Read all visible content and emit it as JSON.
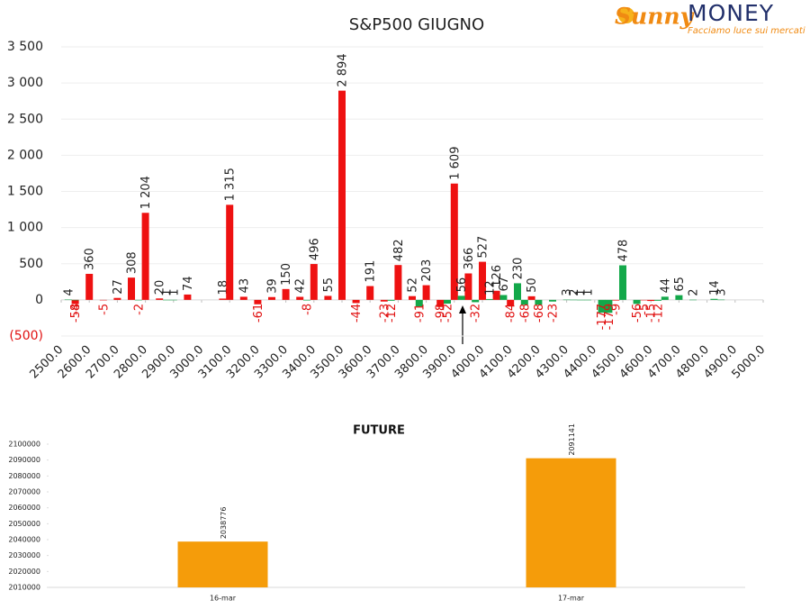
{
  "logo": {
    "brand": "Sunny",
    "name": "MONEY",
    "tagline": "Facciamo luce sui mercati"
  },
  "chart_data": [
    {
      "type": "bar",
      "title": "S&P500 GIUGNO",
      "xlim": [
        2500,
        5000
      ],
      "xticks": [
        {
          "value": 2500,
          "label": "2500.0"
        },
        {
          "value": 2600,
          "label": "2600.0"
        },
        {
          "value": 2700,
          "label": "2700.0"
        },
        {
          "value": 2800,
          "label": "2800.0"
        },
        {
          "value": 2900,
          "label": "2900.0"
        },
        {
          "value": 3000,
          "label": "3000.0"
        },
        {
          "value": 3100,
          "label": "3100.0"
        },
        {
          "value": 3200,
          "label": "3200.0"
        },
        {
          "value": 3300,
          "label": "3300.0"
        },
        {
          "value": 3400,
          "label": "3400.0"
        },
        {
          "value": 3500,
          "label": "3500.0"
        },
        {
          "value": 3600,
          "label": "3600.0"
        },
        {
          "value": 3700,
          "label": "3700.0"
        },
        {
          "value": 3800,
          "label": "3800.0"
        },
        {
          "value": 3900,
          "label": "3900.0"
        },
        {
          "value": 4000,
          "label": "4000.0"
        },
        {
          "value": 4100,
          "label": "4100.0"
        },
        {
          "value": 4200,
          "label": "4200.0"
        },
        {
          "value": 4300,
          "label": "4300.0"
        },
        {
          "value": 4400,
          "label": "4400.0"
        },
        {
          "value": 4500,
          "label": "4500.0"
        },
        {
          "value": 4600,
          "label": "4600.0"
        },
        {
          "value": 4700,
          "label": "4700.0"
        },
        {
          "value": 4800,
          "label": "4800.0"
        },
        {
          "value": 4900,
          "label": "4900.0"
        },
        {
          "value": 5000,
          "label": "5000.0"
        }
      ],
      "ylim": [
        -500,
        3500
      ],
      "yticks": [
        {
          "value": -500,
          "label": "(500)"
        },
        0,
        500,
        {
          "value": 1000,
          "label": "1 000"
        },
        {
          "value": 1500,
          "label": "1 500"
        },
        {
          "value": 2000,
          "label": "2 000"
        },
        {
          "value": 2500,
          "label": "2 500"
        },
        {
          "value": 3000,
          "label": "3 000"
        },
        {
          "value": 3500,
          "label": "3 500"
        }
      ],
      "grid": true,
      "series": [
        {
          "color": "#ee1111",
          "x": [
            2550,
            2600,
            2650,
            2700,
            2750,
            2800,
            2850,
            2950,
            3075,
            3100,
            3150,
            3200,
            3250,
            3300,
            3350,
            3400,
            3450,
            3500,
            3550,
            3600,
            3650,
            3700,
            3750,
            3800,
            3850,
            3900,
            3950,
            4000,
            4050,
            4100,
            4175,
            4475,
            4575,
            4600
          ],
          "values": [
            -58,
            360,
            -5,
            27,
            308,
            1204,
            20,
            74,
            18,
            1315,
            43,
            -61,
            39,
            150,
            42,
            496,
            55,
            2894,
            -44,
            191,
            -23,
            482,
            52,
            203,
            -98,
            1609,
            366,
            527,
            126,
            -84,
            50,
            -9,
            -5,
            -15
          ],
          "value_labels": [
            "-58",
            "360",
            "-5",
            "27",
            "308",
            "1 204",
            "20",
            "74",
            "18",
            "1 315",
            "43",
            "-61",
            "39",
            "150",
            "42",
            "496",
            "55",
            "2 894",
            "-44",
            "191",
            "-23",
            "482",
            "52",
            "203",
            "-98",
            "1 609",
            "366",
            "527",
            "126",
            "-84",
            "50",
            "-9",
            "-5",
            "-15"
          ]
        },
        {
          "color": "#13a84a",
          "x": [
            2525,
            2550,
            2775,
            2875,
            2900,
            3375,
            3675,
            3775,
            3875,
            3925,
            3975,
            4025,
            4075,
            4125,
            4150,
            4200,
            4250,
            4300,
            4325,
            4350,
            4375,
            4425,
            4450,
            4500,
            4550,
            4625,
            4650,
            4700,
            4750,
            4825,
            4850
          ],
          "values": [
            4,
            -4,
            -2,
            1,
            1,
            -8,
            -12,
            -91,
            -52,
            56,
            -32,
            12,
            67,
            230,
            -68,
            -68,
            -23,
            3,
            2,
            1,
            1,
            -177,
            -179,
            478,
            -56,
            -12,
            44,
            65,
            2,
            14,
            3
          ]
        }
      ]
    },
    {
      "type": "column",
      "title": "FUTURE",
      "categories": [
        "16-mar",
        "17-mar"
      ],
      "values": [
        2038776,
        2091141
      ],
      "color": "#f59c0a",
      "ylim": [
        2010000,
        2100000
      ],
      "yticks": [
        2010000,
        2020000,
        2030000,
        2040000,
        2050000,
        2060000,
        2070000,
        2080000,
        2090000,
        2100000
      ]
    }
  ]
}
